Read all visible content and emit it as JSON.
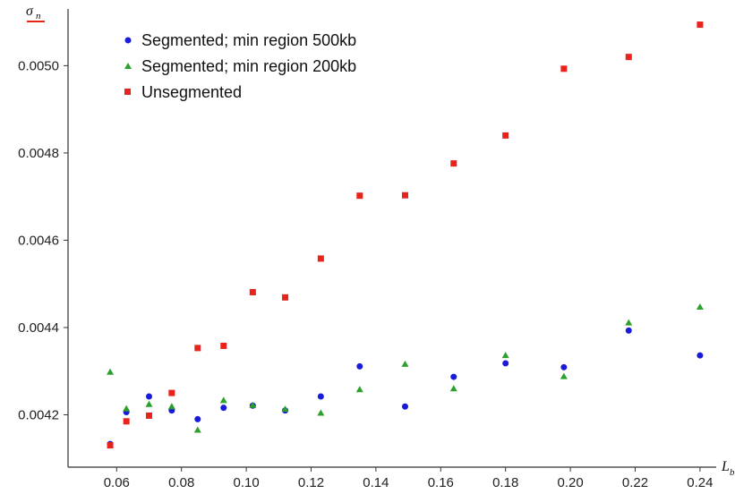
{
  "chart_data": {
    "type": "scatter",
    "xlabel": "L",
    "xlabel_sub": "b",
    "ylabel": "σ",
    "ylabel_sub": "n",
    "xlim": [
      0.045,
      0.245
    ],
    "ylim": [
      0.00408,
      0.00513
    ],
    "x_ticks": [
      0.06,
      0.08,
      0.1,
      0.12,
      0.14,
      0.16,
      0.18,
      0.2,
      0.22,
      0.24
    ],
    "x_tick_labels": [
      "0.06",
      "0.08",
      "0.10",
      "0.12",
      "0.14",
      "0.16",
      "0.18",
      "0.20",
      "0.22",
      "0.24"
    ],
    "y_ticks": [
      0.0042,
      0.0044,
      0.0046,
      0.0048,
      0.005
    ],
    "y_tick_labels": [
      "0.0042",
      "0.0044",
      "0.0046",
      "0.0048",
      "0.0050"
    ],
    "grid": false,
    "legend_position": "top-left",
    "series": [
      {
        "name": "Segmented; min region 500kb",
        "marker": "circle",
        "color": "#1a1adb",
        "x": [
          0.058,
          0.063,
          0.07,
          0.077,
          0.085,
          0.093,
          0.102,
          0.112,
          0.123,
          0.135,
          0.149,
          0.164,
          0.18,
          0.198,
          0.218,
          0.24
        ],
        "y": [
          0.004133,
          0.004206,
          0.004242,
          0.00421,
          0.00419,
          0.004216,
          0.004221,
          0.00421,
          0.004242,
          0.004311,
          0.004219,
          0.004287,
          0.004318,
          0.004309,
          0.004393,
          0.004336
        ]
      },
      {
        "name": "Segmented; min region 200kb",
        "marker": "triangle",
        "color": "#2ca02c",
        "x": [
          0.058,
          0.063,
          0.07,
          0.077,
          0.085,
          0.093,
          0.102,
          0.112,
          0.123,
          0.135,
          0.149,
          0.164,
          0.18,
          0.198,
          0.218,
          0.24
        ],
        "y": [
          0.004298,
          0.004214,
          0.004224,
          0.004219,
          0.004165,
          0.004233,
          0.004222,
          0.004213,
          0.004204,
          0.004258,
          0.004316,
          0.00426,
          0.004336,
          0.004288,
          0.004411,
          0.004447
        ]
      },
      {
        "name": "Unsegmented",
        "marker": "square",
        "color": "#e8231b",
        "x": [
          0.058,
          0.063,
          0.07,
          0.077,
          0.085,
          0.093,
          0.102,
          0.112,
          0.123,
          0.135,
          0.149,
          0.164,
          0.18,
          0.198,
          0.218,
          0.24
        ],
        "y": [
          0.00413,
          0.004185,
          0.004198,
          0.00425,
          0.004353,
          0.004358,
          0.004481,
          0.004469,
          0.004558,
          0.004702,
          0.004703,
          0.004776,
          0.00484,
          0.004993,
          0.00502,
          0.005094
        ]
      }
    ]
  }
}
